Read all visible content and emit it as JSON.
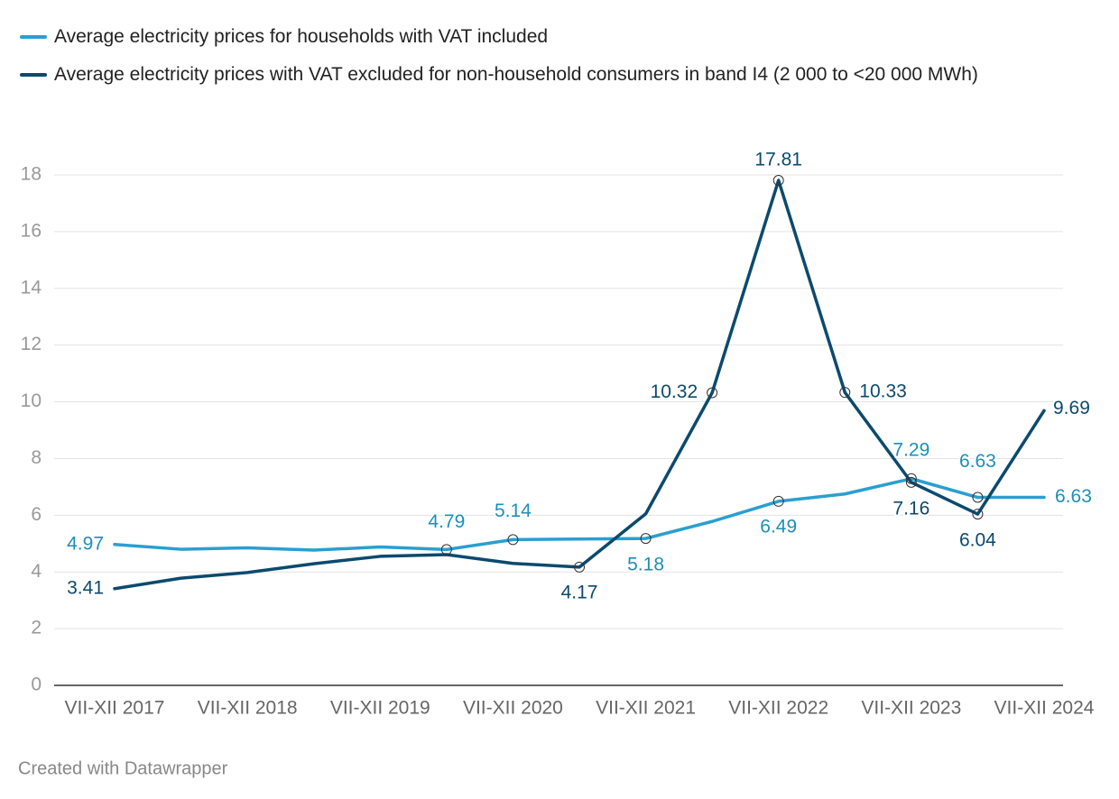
{
  "chart_data": {
    "type": "line",
    "categories": [
      "VII-XII 2017",
      null,
      "VII-XII 2018",
      null,
      "VII-XII 2019",
      null,
      "VII-XII 2020",
      null,
      "VII-XII 2021",
      null,
      "VII-XII 2022",
      null,
      "VII-XII 2023",
      null,
      "VII-XII 2024"
    ],
    "series": [
      {
        "name": "Average electricity prices for households with VAT included",
        "color": "#2a9fd0",
        "values": [
          4.97,
          4.8,
          4.85,
          4.77,
          4.88,
          4.79,
          5.14,
          5.16,
          5.18,
          5.78,
          6.49,
          6.75,
          7.29,
          6.63,
          6.63
        ],
        "value_labels": [
          "4.97",
          null,
          null,
          null,
          null,
          "4.79",
          "5.14",
          null,
          "5.18",
          null,
          "6.49",
          null,
          "7.29",
          "6.63",
          "6.63"
        ]
      },
      {
        "name": "Average electricity prices with VAT excluded for non-household consumers in band I4 (2 000 to <20 000 MWh)",
        "color": "#0b4a6e",
        "values": [
          3.41,
          3.78,
          3.98,
          4.29,
          4.55,
          4.61,
          4.3,
          4.17,
          6.05,
          10.32,
          17.81,
          10.33,
          7.16,
          6.04,
          9.69
        ],
        "value_labels": [
          "3.41",
          null,
          null,
          null,
          null,
          null,
          null,
          "4.17",
          null,
          "10.32",
          "17.81",
          "10.33",
          "7.16",
          "6.04",
          "9.69"
        ]
      }
    ],
    "ylim": [
      0,
      18
    ],
    "yticks": [
      0,
      2,
      4,
      6,
      8,
      10,
      12,
      14,
      16,
      18
    ],
    "grid": true,
    "footer": "Created with Datawrapper"
  }
}
